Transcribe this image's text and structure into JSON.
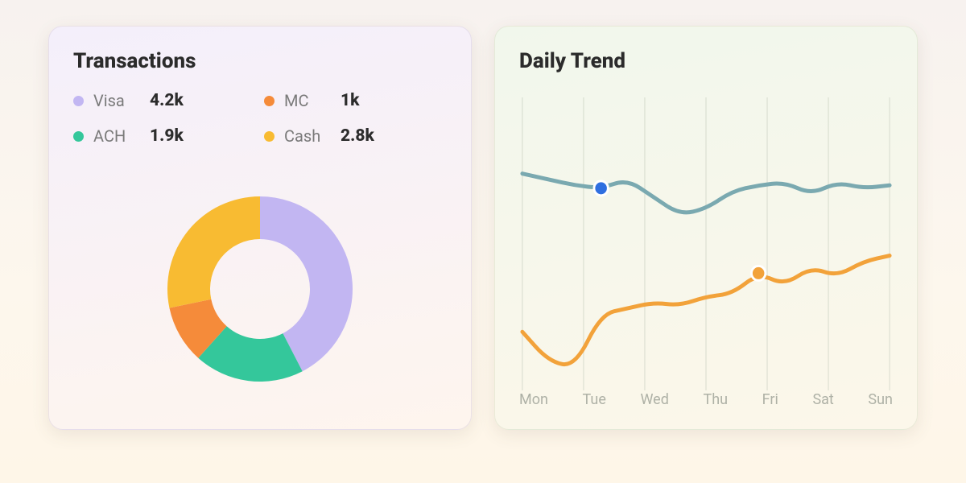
{
  "transactions": {
    "title": "Transactions",
    "type": "donut",
    "title_fontsize": 26,
    "label_fontsize": 20,
    "value_fontsize": 21,
    "background_gradient": [
      "#f4effb",
      "#fef5ee"
    ],
    "donut_outer_radius": 115,
    "donut_inner_radius": 62,
    "series": [
      {
        "name": "Visa",
        "value": 4200,
        "display": "4.2k",
        "color": "#c2b6f2"
      },
      {
        "name": "MC",
        "value": 1000,
        "display": "1k",
        "color": "#f58b3a"
      },
      {
        "name": "ACH",
        "value": 1900,
        "display": "1.9k",
        "color": "#34c79b"
      },
      {
        "name": "Cash",
        "value": 2800,
        "display": "2.8k",
        "color": "#f8bb32"
      }
    ],
    "legend_order": [
      0,
      1,
      2,
      3
    ]
  },
  "trend": {
    "title": "Daily Trend",
    "type": "line",
    "title_fontsize": 26,
    "background_gradient": [
      "#f1f7ec",
      "#fcf7ea"
    ],
    "x_labels": [
      "Mon",
      "Tue",
      "Wed",
      "Thu",
      "Fri",
      "Sat",
      "Sun"
    ],
    "axis_label_color": "#aeb1a6",
    "axis_label_fontsize": 18,
    "grid_color": "rgba(170,180,160,0.28)",
    "ylim": [
      0,
      100
    ],
    "line_width": 5,
    "marker_radius": 9,
    "series": [
      {
        "name": "series-a",
        "color": "#7aa9b0",
        "values": [
          74,
          72,
          70,
          69,
          72,
          66,
          60,
          62,
          68,
          70,
          71,
          67,
          71,
          69,
          70
        ],
        "marker_index": 3,
        "marker_color": "#2f6fe0"
      },
      {
        "name": "series-b",
        "color": "#f2a23a",
        "values": [
          20,
          10,
          8,
          26,
          28,
          30,
          29,
          32,
          33,
          40,
          36,
          42,
          39,
          44,
          46
        ],
        "marker_index": 9,
        "marker_color": "#f2a23a"
      }
    ]
  }
}
